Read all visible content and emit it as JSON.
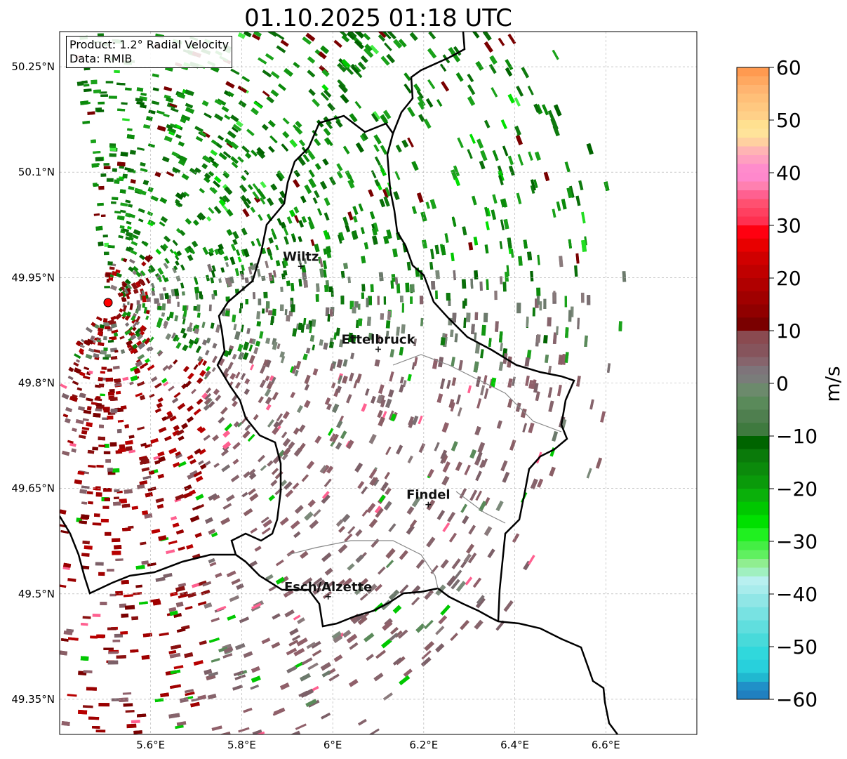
{
  "title": "01.10.2025 01:18 UTC",
  "info": {
    "product": "Product: 1.2° Radial Velocity",
    "source": "Data: RMIB"
  },
  "map": {
    "lon_range": [
      5.4,
      6.8
    ],
    "lat_range": [
      49.3,
      50.3
    ],
    "lat_ticks": [
      {
        "value": 50.25,
        "label": "50.25°N"
      },
      {
        "value": 50.1,
        "label": "50.1°N"
      },
      {
        "value": 49.95,
        "label": "49.95°N"
      },
      {
        "value": 49.8,
        "label": "49.8°N"
      },
      {
        "value": 49.65,
        "label": "49.65°N"
      },
      {
        "value": 49.5,
        "label": "49.5°N"
      },
      {
        "value": 49.35,
        "label": "49.35°N"
      }
    ],
    "lon_ticks": [
      {
        "value": 5.6,
        "label": "5.6°E"
      },
      {
        "value": 5.8,
        "label": "5.8°E"
      },
      {
        "value": 6.0,
        "label": "6°E"
      },
      {
        "value": 6.2,
        "label": "6.2°E"
      },
      {
        "value": 6.4,
        "label": "6.4°E"
      },
      {
        "value": 6.6,
        "label": "6.6°E"
      }
    ],
    "radar_site": {
      "lon": 5.505,
      "lat": 49.914
    },
    "cities": [
      {
        "name": "Wiltz",
        "lon": 5.93,
        "lat": 49.966
      },
      {
        "name": "Ettelbruck",
        "lon": 6.1,
        "lat": 49.848
      },
      {
        "name": "Findel",
        "lon": 6.21,
        "lat": 49.627
      },
      {
        "name": "Esch/Alzette",
        "lon": 5.99,
        "lat": 49.496
      }
    ]
  },
  "colorbar": {
    "label": "m/s",
    "min": -60,
    "max": 60,
    "ticks": [
      {
        "value": 60,
        "label": "60"
      },
      {
        "value": 50,
        "label": "50"
      },
      {
        "value": 40,
        "label": "40"
      },
      {
        "value": 30,
        "label": "30"
      },
      {
        "value": 20,
        "label": "20"
      },
      {
        "value": 10,
        "label": "10"
      },
      {
        "value": 0,
        "label": "0"
      },
      {
        "value": -10,
        "label": "−10"
      },
      {
        "value": -20,
        "label": "−20"
      },
      {
        "value": -30,
        "label": "−30"
      },
      {
        "value": -40,
        "label": "−40"
      },
      {
        "value": -50,
        "label": "−50"
      },
      {
        "value": -60,
        "label": "−60"
      }
    ],
    "colors": {
      "pos_high": "#ff9a50",
      "pos_yellow": "#ffe39a",
      "pos_pink": "#ff8ccc",
      "pos_red": "#ff0010",
      "pos_darkred": "#7a0000",
      "near_zero_pos": "#86646c",
      "near_zero_neg": "#5a8a5a",
      "neg_darkgreen": "#006400",
      "neg_green": "#00e000",
      "neg_lightgreen": "#90ee90",
      "neg_lightcyan": "#b8f0f0",
      "neg_cyan": "#30d8dc",
      "neg_blue": "#2080c0"
    }
  }
}
